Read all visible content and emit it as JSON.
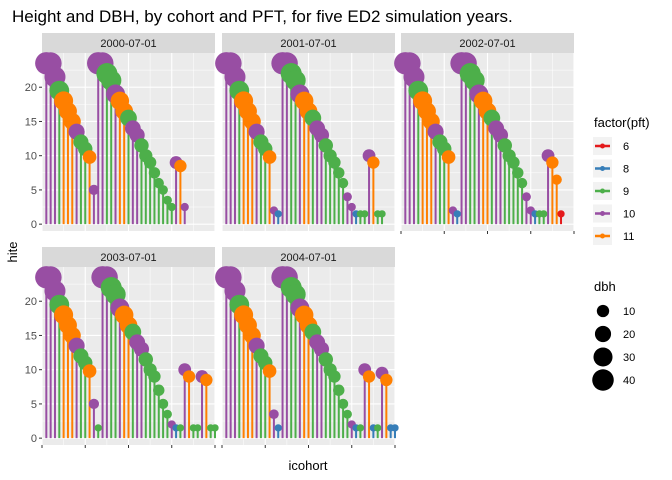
{
  "chart_data": {
    "type": "scatter",
    "title": "Height and DBH, by cohort and PFT, for five ED2 simulation years.",
    "xlabel": "icohort",
    "ylabel": "hite",
    "xlim": [
      0,
      40
    ],
    "ylim": [
      -1,
      25
    ],
    "y_ticks": [
      0,
      5,
      10,
      15,
      20
    ],
    "x_ticks": [
      0,
      10,
      20,
      30,
      40
    ],
    "grid": true,
    "facets": [
      {
        "label": "2000-07-01",
        "cohorts": {
          "icohort": [
            1,
            2,
            3,
            4,
            5,
            6,
            7,
            8,
            9,
            10,
            11,
            12,
            13,
            14,
            15,
            16,
            17,
            18,
            19,
            20,
            21,
            22,
            23,
            24,
            25,
            26,
            27,
            28,
            29,
            30,
            31,
            32,
            33
          ],
          "hite": [
            23.5,
            23.5,
            21.5,
            19.5,
            18.0,
            16.5,
            15.0,
            13.5,
            12.0,
            11.0,
            9.8,
            5.0,
            23.5,
            23.5,
            22.0,
            21.0,
            19.0,
            18.0,
            16.5,
            15.5,
            14.0,
            13.0,
            11.5,
            10.0,
            9.0,
            7.5,
            6.0,
            5.0,
            3.5,
            2.5,
            9.0,
            8.5,
            2.5
          ],
          "pft": [
            10,
            10,
            10,
            9,
            11,
            11,
            11,
            10,
            9,
            9,
            11,
            10,
            10,
            10,
            9,
            9,
            10,
            11,
            11,
            9,
            10,
            10,
            9,
            9,
            9,
            9,
            9,
            9,
            9,
            9,
            10,
            11,
            10
          ],
          "dbh": [
            44,
            42,
            38,
            33,
            30,
            26,
            23,
            20,
            17,
            15,
            13,
            6,
            44,
            42,
            38,
            35,
            30,
            28,
            25,
            22,
            19,
            17,
            15,
            12,
            10,
            8,
            6,
            5,
            4,
            3,
            11,
            10,
            3
          ]
        }
      },
      {
        "label": "2001-07-01",
        "cohorts": {
          "icohort": [
            1,
            2,
            3,
            4,
            5,
            6,
            7,
            8,
            9,
            10,
            11,
            12,
            13,
            14,
            15,
            16,
            17,
            18,
            19,
            20,
            21,
            22,
            23,
            24,
            25,
            26,
            27,
            28,
            29,
            30,
            31,
            32,
            33,
            34,
            35,
            36,
            37
          ],
          "hite": [
            23.5,
            23.5,
            21.5,
            19.5,
            18.0,
            16.5,
            15.0,
            13.5,
            12.0,
            11.0,
            9.8,
            2.0,
            1.5,
            23.5,
            23.5,
            22.0,
            21.0,
            19.0,
            18.0,
            16.5,
            15.5,
            14.0,
            13.0,
            11.5,
            10.0,
            9.0,
            7.5,
            6.0,
            4.0,
            2.5,
            1.5,
            1.5,
            1.5,
            10.0,
            9.0,
            1.5,
            1.5
          ],
          "pft": [
            10,
            10,
            10,
            9,
            11,
            11,
            11,
            10,
            9,
            9,
            11,
            10,
            8,
            10,
            10,
            9,
            9,
            10,
            11,
            11,
            9,
            10,
            10,
            9,
            9,
            9,
            9,
            9,
            10,
            10,
            8,
            9,
            9,
            10,
            11,
            9,
            9
          ],
          "dbh": [
            44,
            42,
            38,
            33,
            30,
            26,
            23,
            20,
            17,
            15,
            13,
            3,
            2,
            44,
            42,
            38,
            35,
            30,
            28,
            25,
            22,
            19,
            17,
            15,
            12,
            10,
            8,
            6,
            4,
            3,
            2,
            2,
            2,
            11,
            10,
            2,
            2
          ]
        }
      },
      {
        "label": "2002-07-01",
        "cohorts": {
          "icohort": [
            1,
            2,
            3,
            4,
            5,
            6,
            7,
            8,
            9,
            10,
            11,
            12,
            13,
            14,
            15,
            16,
            17,
            18,
            19,
            20,
            21,
            22,
            23,
            24,
            25,
            26,
            27,
            28,
            29,
            30,
            31,
            32,
            33,
            34,
            35,
            36,
            37
          ],
          "hite": [
            23.5,
            23.5,
            21.5,
            19.5,
            18.0,
            16.5,
            15.0,
            13.5,
            12.0,
            11.0,
            9.8,
            2.0,
            1.5,
            23.5,
            23.5,
            22.0,
            21.0,
            19.0,
            18.0,
            16.5,
            15.5,
            14.0,
            13.0,
            11.5,
            10.0,
            9.0,
            7.5,
            6.0,
            4.0,
            2.0,
            1.5,
            1.5,
            1.5,
            10.0,
            9.0,
            6.5,
            1.5
          ],
          "pft": [
            10,
            10,
            10,
            9,
            11,
            11,
            11,
            10,
            9,
            9,
            11,
            10,
            8,
            10,
            10,
            9,
            9,
            10,
            11,
            11,
            9,
            10,
            10,
            9,
            9,
            9,
            9,
            9,
            10,
            10,
            8,
            9,
            9,
            10,
            11,
            11,
            6
          ],
          "dbh": [
            44,
            42,
            38,
            33,
            30,
            26,
            23,
            20,
            17,
            15,
            13,
            3,
            2,
            44,
            42,
            38,
            35,
            30,
            28,
            25,
            22,
            19,
            17,
            15,
            12,
            10,
            8,
            6,
            4,
            3,
            2,
            2,
            2,
            11,
            10,
            6,
            2
          ]
        }
      },
      {
        "label": "2003-07-01",
        "cohorts": {
          "icohort": [
            1,
            2,
            3,
            4,
            5,
            6,
            7,
            8,
            9,
            10,
            11,
            12,
            13,
            14,
            15,
            16,
            17,
            18,
            19,
            20,
            21,
            22,
            23,
            24,
            25,
            26,
            27,
            28,
            29,
            30,
            31,
            32,
            33,
            34,
            35,
            36,
            37,
            38,
            39,
            40
          ],
          "hite": [
            23.5,
            23.5,
            21.5,
            19.5,
            18.0,
            16.5,
            15.0,
            13.5,
            12.0,
            11.0,
            9.8,
            5.0,
            1.5,
            23.5,
            23.5,
            22.0,
            21.0,
            19.0,
            18.0,
            16.5,
            15.5,
            14.0,
            13.0,
            11.5,
            10.0,
            9.0,
            7.0,
            5.0,
            3.5,
            2.0,
            1.5,
            1.5,
            10.0,
            9.0,
            1.5,
            1.5,
            9.0,
            8.5,
            1.5,
            1.5
          ],
          "pft": [
            10,
            10,
            10,
            9,
            11,
            11,
            11,
            10,
            9,
            9,
            11,
            10,
            9,
            10,
            10,
            9,
            9,
            10,
            11,
            11,
            9,
            10,
            10,
            9,
            9,
            9,
            9,
            9,
            9,
            10,
            8,
            9,
            10,
            11,
            9,
            9,
            10,
            11,
            9,
            9
          ],
          "dbh": [
            44,
            42,
            38,
            33,
            30,
            26,
            23,
            20,
            17,
            15,
            13,
            6,
            2,
            44,
            42,
            38,
            35,
            30,
            28,
            25,
            22,
            19,
            17,
            15,
            12,
            10,
            8,
            6,
            4,
            3,
            2,
            2,
            11,
            10,
            2,
            2,
            11,
            10,
            2,
            2
          ]
        }
      },
      {
        "label": "2004-07-01",
        "cohorts": {
          "icohort": [
            1,
            2,
            3,
            4,
            5,
            6,
            7,
            8,
            9,
            10,
            11,
            12,
            13,
            14,
            15,
            16,
            17,
            18,
            19,
            20,
            21,
            22,
            23,
            24,
            25,
            26,
            27,
            28,
            29,
            30,
            31,
            32,
            33,
            34,
            35,
            36,
            37,
            38,
            39,
            40
          ],
          "hite": [
            23.5,
            23.5,
            21.5,
            19.5,
            18.0,
            16.5,
            15.0,
            13.5,
            12.0,
            11.0,
            9.8,
            3.5,
            1.5,
            23.5,
            23.5,
            22.0,
            21.0,
            19.0,
            18.0,
            16.5,
            15.5,
            14.0,
            13.0,
            11.5,
            10.0,
            9.0,
            7.0,
            5.0,
            3.5,
            2.0,
            1.5,
            1.5,
            10.0,
            9.0,
            1.5,
            1.5,
            9.5,
            8.5,
            1.5,
            1.5
          ],
          "pft": [
            10,
            10,
            10,
            9,
            11,
            11,
            11,
            10,
            9,
            9,
            11,
            10,
            8,
            10,
            10,
            9,
            9,
            10,
            11,
            11,
            9,
            10,
            10,
            9,
            9,
            9,
            9,
            9,
            9,
            10,
            8,
            9,
            10,
            11,
            8,
            9,
            10,
            11,
            8,
            8
          ],
          "dbh": [
            44,
            42,
            38,
            33,
            30,
            26,
            23,
            20,
            17,
            15,
            13,
            5,
            2,
            44,
            42,
            38,
            35,
            30,
            28,
            25,
            22,
            19,
            17,
            15,
            12,
            10,
            8,
            6,
            4,
            3,
            2,
            2,
            11,
            10,
            2,
            2,
            11,
            10,
            2,
            2
          ]
        }
      }
    ],
    "legend_pft": {
      "title": "factor(pft)",
      "entries": [
        {
          "label": "6",
          "color": "#e41a1c"
        },
        {
          "label": "8",
          "color": "#377eb8"
        },
        {
          "label": "9",
          "color": "#4daf4a"
        },
        {
          "label": "10",
          "color": "#984ea3"
        },
        {
          "label": "11",
          "color": "#ff7f00"
        }
      ]
    },
    "legend_dbh": {
      "title": "dbh",
      "entries": [
        {
          "label": "10",
          "value": 10
        },
        {
          "label": "20",
          "value": 20
        },
        {
          "label": "30",
          "value": 30
        },
        {
          "label": "40",
          "value": 40
        }
      ]
    },
    "legend_placement": "right",
    "colors": {
      "panel": "#ebebeb",
      "strip": "#d9d9d9",
      "grid": "#ffffff"
    }
  }
}
